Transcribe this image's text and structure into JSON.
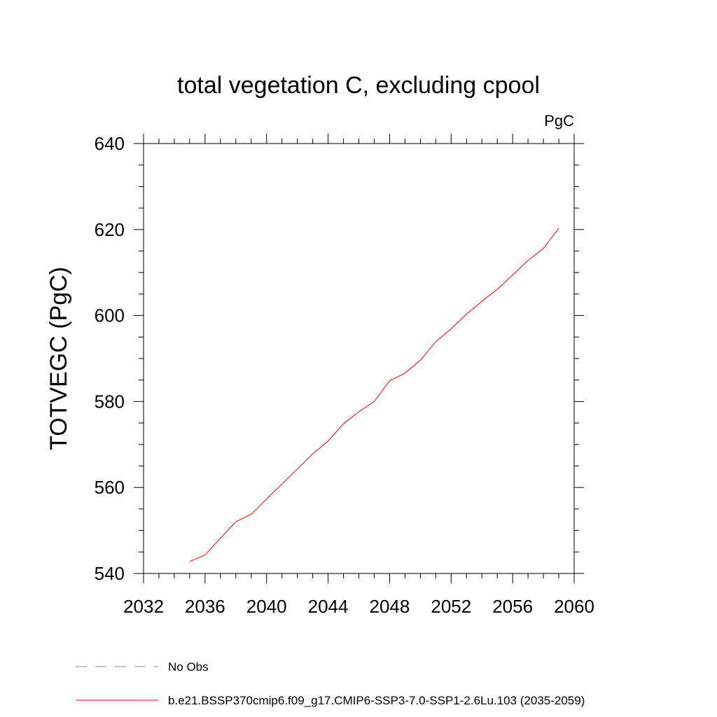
{
  "chart_data": {
    "type": "line",
    "title": "total vegetation C, excluding cpool",
    "units_label": "PgC",
    "ylabel": "TOTVEGC  (PgC)",
    "xlabel": "",
    "xlim": [
      2032,
      2060
    ],
    "ylim": [
      540,
      640
    ],
    "x_ticks": [
      "2032",
      "2036",
      "2040",
      "2044",
      "2048",
      "2052",
      "2056",
      "2060"
    ],
    "y_ticks": [
      "540",
      "560",
      "580",
      "600",
      "620",
      "640"
    ],
    "series": [
      {
        "name": "b.e21.BSSP370cmip6.f09_g17.CMIP6-SSP3-7.0-SSP1-2.6Lu.103 (2035-2059)",
        "color": "#ff0000",
        "style": "solid",
        "x": [
          2035,
          2036,
          2037,
          2038,
          2039,
          2040,
          2041,
          2042,
          2043,
          2044,
          2045,
          2046,
          2047,
          2048,
          2049,
          2050,
          2051,
          2052,
          2053,
          2054,
          2055,
          2056,
          2057,
          2058,
          2059
        ],
        "y": [
          542.8,
          544.3,
          548.2,
          552.0,
          553.8,
          557.3,
          560.8,
          564.3,
          567.8,
          570.8,
          574.8,
          577.6,
          580.0,
          584.8,
          586.6,
          589.6,
          593.9,
          596.9,
          600.3,
          603.3,
          606.1,
          609.4,
          612.8,
          615.6,
          620.3
        ]
      }
    ],
    "legend": [
      {
        "label": "No Obs",
        "color": "#7f7fbf",
        "style": "dashed"
      },
      {
        "label": "b.e21.BSSP370cmip6.f09_g17.CMIP6-SSP3-7.0-SSP1-2.6Lu.103 (2035-2059)",
        "color": "#ff0000",
        "style": "solid"
      }
    ]
  }
}
